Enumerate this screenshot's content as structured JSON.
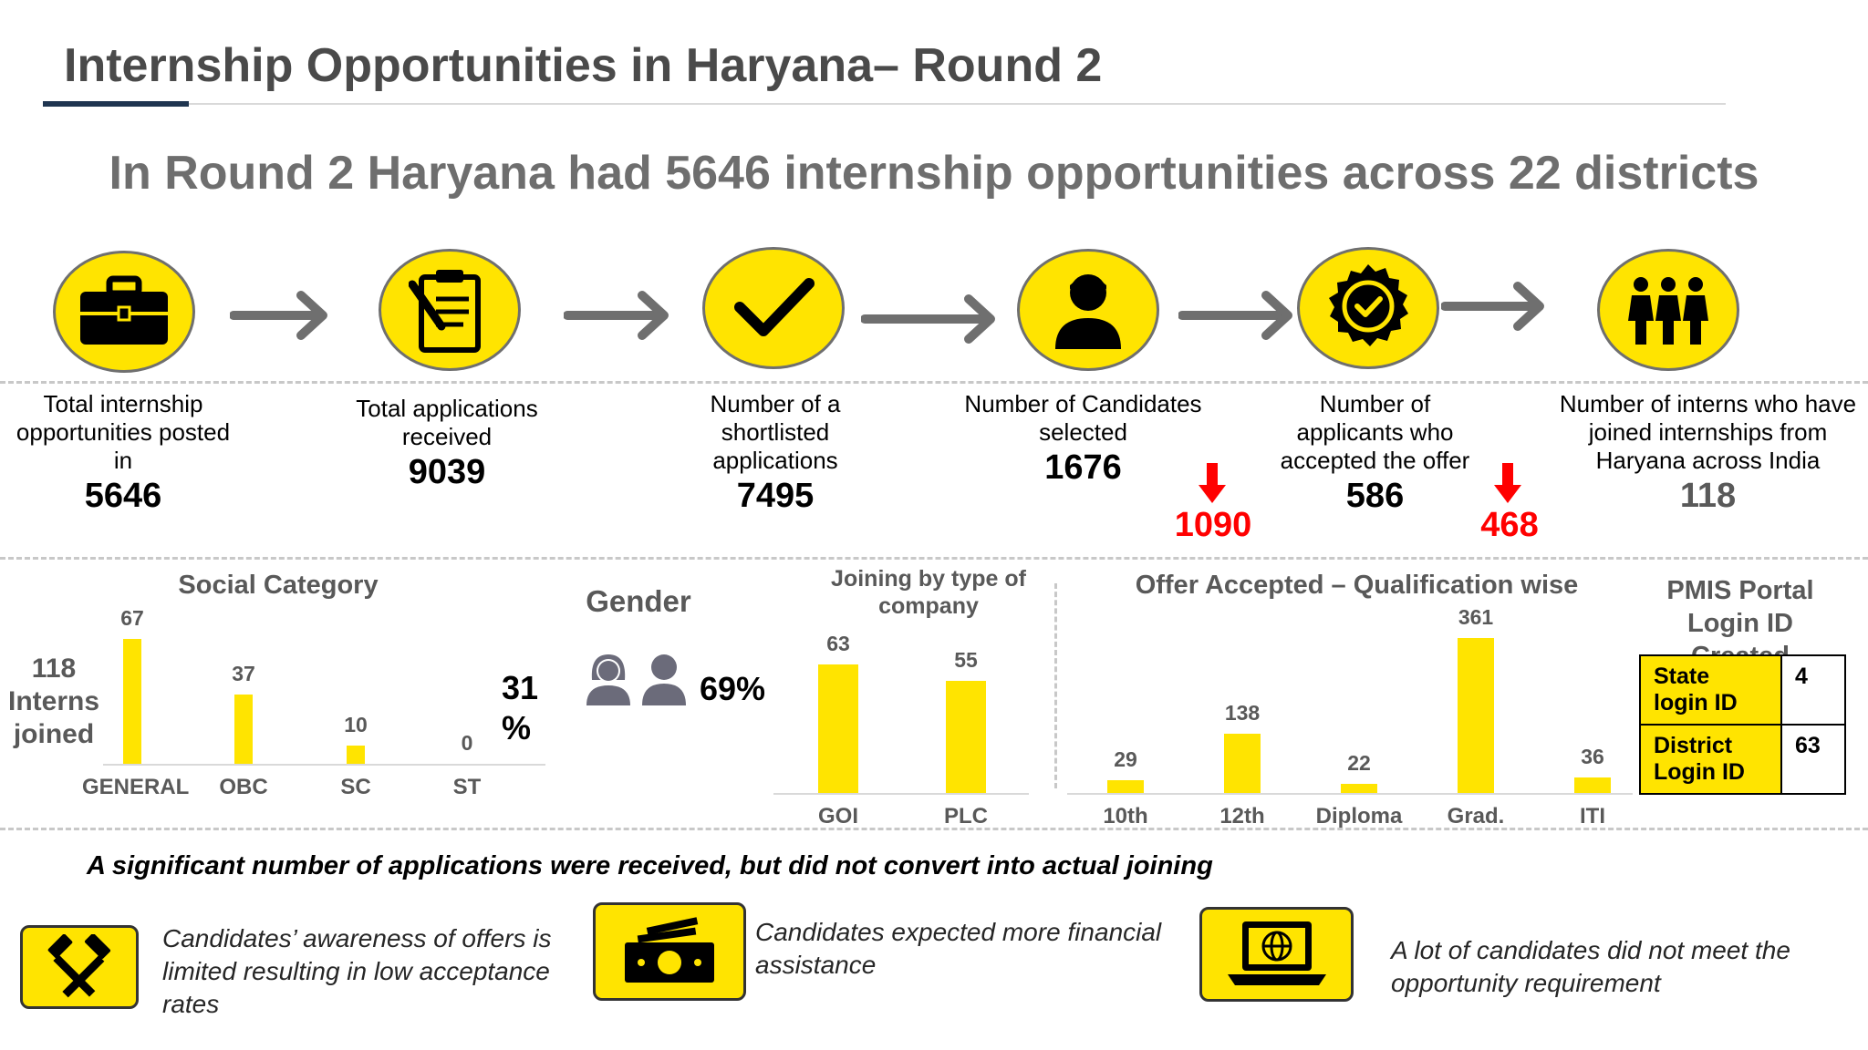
{
  "header": {
    "title": "Internship Opportunities in  Haryana– Round 2",
    "subtitle": "In Round 2 Haryana had 5646  internship opportunities across  22  districts"
  },
  "funnel": {
    "stages": [
      {
        "icon": "briefcase-icon",
        "label": "Total internship opportunities posted in",
        "value": "5646"
      },
      {
        "icon": "clipboard-icon",
        "label": "Total applications received",
        "value": "9039"
      },
      {
        "icon": "checkmark-icon",
        "label": "Number of a shortlisted applications",
        "value": "7495"
      },
      {
        "icon": "person-icon",
        "label": "Number of Candidates selected",
        "value": "1676"
      },
      {
        "icon": "badge-check-icon",
        "label": "Number of applicants who accepted the offer",
        "value": "586"
      },
      {
        "icon": "group-icon",
        "label": "Number of interns who have joined internships from Haryana across India",
        "value": "118"
      }
    ],
    "drops": [
      "1090",
      "468"
    ]
  },
  "interns_joined": {
    "value": "118",
    "label": "Interns joined"
  },
  "social_category": {
    "title": "Social Category",
    "percent": "31 %"
  },
  "gender": {
    "title": "Gender",
    "percent": "69%"
  },
  "company": {
    "title": "Joining by type of company"
  },
  "qualification": {
    "title": "Offer Accepted – Qualification wise"
  },
  "pmis": {
    "title": "PMIS Portal Login ID Created",
    "rows": [
      {
        "key": "State login ID",
        "value": "4"
      },
      {
        "key": "District Login ID",
        "value": "63"
      }
    ]
  },
  "chart_data": [
    {
      "type": "bar",
      "title": "Social Category",
      "categories": [
        "GENERAL",
        "OBC",
        "SC",
        "ST"
      ],
      "values": [
        67,
        37,
        10,
        0
      ]
    },
    {
      "type": "bar",
      "title": "Joining by type of company",
      "categories": [
        "GOI",
        "PLC"
      ],
      "values": [
        63,
        55
      ]
    },
    {
      "type": "bar",
      "title": "Offer Accepted – Qualification wise",
      "categories": [
        "10th",
        "12th",
        "Diploma",
        "Grad.",
        "ITI"
      ],
      "values": [
        29,
        138,
        22,
        361,
        36
      ]
    }
  ],
  "insight": "A significant number of applications were received, but did not convert into actual joining",
  "reasons": [
    {
      "icon": "hammer-icon",
      "text": "Candidates’ awareness of offers is limited resulting in low acceptance rates"
    },
    {
      "icon": "money-icon",
      "text": "Candidates expected more financial assistance"
    },
    {
      "icon": "laptop-globe-icon",
      "text": "A lot of candidates did not meet the opportunity requirement"
    }
  ],
  "colors": {
    "accent": "#ffe400",
    "drop": "#ff0000",
    "navy": "#1f3550",
    "grey_text": "#595959"
  }
}
